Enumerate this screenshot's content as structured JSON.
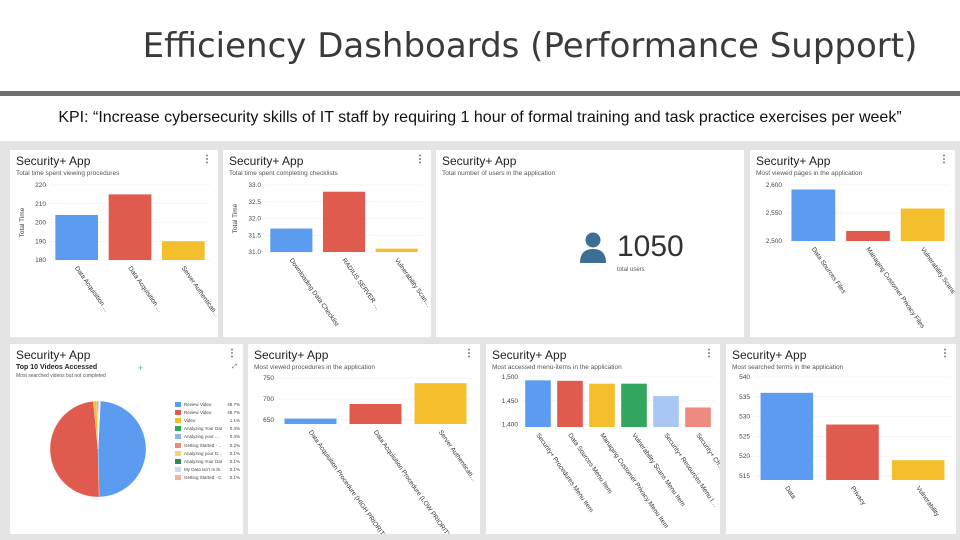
{
  "slide": {
    "title": "Efficiency Dashboards (Performance Support)",
    "kpi": "KPI: “Increase cybersecurity skills of IT staff by requiring 1 hour of formal training and task practice exercises per week”"
  },
  "colors": {
    "blue": "#5b9cf0",
    "red": "#e05a4e",
    "yellow": "#f4bf2c",
    "green": "#33a65d",
    "lightblue": "#a9c7f5",
    "salmon": "#ee8a80"
  },
  "cards": {
    "c1": {
      "title": "Security+ App",
      "subtitle": "Total time spent viewing procedures",
      "menu": "⋮"
    },
    "c2": {
      "title": "Security+ App",
      "subtitle": "Total time spent completing checklists",
      "menu": "⋮"
    },
    "c3": {
      "title": "Security+ App",
      "subtitle": "Total number of users in the application",
      "value": "1050",
      "value_label": "total users",
      "icon": "user-icon"
    },
    "c4": {
      "title": "Security+ App",
      "subtitle": "Most viewed pages in the application",
      "menu": "⋮"
    },
    "c5": {
      "title": "Security+ App",
      "subtitle": "Top 10 Videos Accessed",
      "subtitle2": "Most searched videos but not completed",
      "menu": "⋮",
      "plus": "+",
      "expand": "⤢",
      "legend": [
        {
          "label": "Review Video",
          "pct": "48.7%",
          "color": "#5b9cf0"
        },
        {
          "label": "Review Video",
          "pct": "48.7%",
          "color": "#e05a4e"
        },
        {
          "label": "Video",
          "pct": "1.1%",
          "color": "#f4bf2c"
        },
        {
          "label": "Analyzing Your Dat…",
          "pct": "0.3%",
          "color": "#33a65d"
        },
        {
          "label": "Analyzing your …",
          "pct": "0.3%",
          "color": "#8fb3ef"
        },
        {
          "label": "Getting Started - …",
          "pct": "0.2%",
          "color": "#ee8a80"
        },
        {
          "label": "Analyzing your D…",
          "pct": "0.1%",
          "color": "#f6d36b"
        },
        {
          "label": "Analyzing Your Dat…",
          "pct": "0.1%",
          "color": "#2e8b57"
        },
        {
          "label": "My Data Isn't In th…",
          "pct": "0.1%",
          "color": "#c7d7f7"
        },
        {
          "label": "Getting Started - C…",
          "pct": "0.1%",
          "color": "#f3b0a8"
        }
      ]
    },
    "c6": {
      "title": "Security+ App",
      "subtitle": "Most viewed procedures in the application",
      "menu": "⋮"
    },
    "c7": {
      "title": "Security+ App",
      "subtitle": "Most accessed menu-items in the application",
      "menu": "⋮"
    },
    "c8": {
      "title": "Security+ App",
      "subtitle": "Most searched terms in the application",
      "menu": "⋮"
    }
  },
  "chart_data": [
    {
      "id": "c1",
      "type": "bar",
      "ylabel": "Total Time",
      "ylim": [
        180,
        220
      ],
      "yticks": [
        180,
        190,
        200,
        210,
        220
      ],
      "categories": [
        "Data Acquisition …",
        "Data Acquisition …",
        "Server Authenticati…"
      ],
      "values": [
        204,
        215,
        190
      ],
      "colors": [
        "#5b9cf0",
        "#e05a4e",
        "#f4bf2c"
      ]
    },
    {
      "id": "c2",
      "type": "bar",
      "ylabel": "Total Time",
      "ylim": [
        31.0,
        33.0
      ],
      "yticks": [
        31.0,
        31.5,
        32.0,
        32.5,
        33.0
      ],
      "categories": [
        "Downloading Data Checklist",
        "RADIUS SERVER …",
        "Vulnerability Scan…"
      ],
      "values": [
        31.7,
        32.8,
        31.1
      ],
      "colors": [
        "#5b9cf0",
        "#e05a4e",
        "#f4bf2c"
      ]
    },
    {
      "id": "c4",
      "type": "bar",
      "ylim": [
        2500,
        2600
      ],
      "yticks": [
        2500,
        2550,
        2600
      ],
      "categories": [
        "Data Sources Files",
        "Managing Customer Privacy Files",
        "Vulnerability Scans"
      ],
      "values": [
        2592,
        2518,
        2558
      ],
      "colors": [
        "#5b9cf0",
        "#e05a4e",
        "#f4bf2c"
      ]
    },
    {
      "id": "c5",
      "type": "pie",
      "categories": [
        "Review Video",
        "Review Video",
        "Video",
        "Analyzing Your Dat…",
        "Analyzing your …",
        "Getting Started - …",
        "Analyzing your D…",
        "Analyzing Your Dat…",
        "My Data Isn't In th…",
        "Getting Started - C…"
      ],
      "values": [
        48.7,
        48.7,
        1.1,
        0.3,
        0.3,
        0.2,
        0.1,
        0.1,
        0.1,
        0.1
      ]
    },
    {
      "id": "c6",
      "type": "bar",
      "ylim": [
        640,
        760
      ],
      "yticks": [
        650,
        700,
        750
      ],
      "categories": [
        "Data Acquisition Procedure (HIGH PRIORITY)",
        "Data Acquisition Procedure (LOW PRIORITY)",
        "Server Authenticati…"
      ],
      "values": [
        653,
        688,
        738
      ],
      "colors": [
        "#5b9cf0",
        "#e05a4e",
        "#f4bf2c"
      ]
    },
    {
      "id": "c7",
      "type": "bar",
      "ylim": [
        1395,
        1500
      ],
      "yticks": [
        1400,
        1450,
        1500
      ],
      "categories": [
        "Security+ Procedures Menu Item",
        "Data Sources Menu Item",
        "Managing Customer Privacy Menu Item",
        "Vulnerability Scans Menu Item",
        "Security+ Resources Menu I…",
        "Security+ Ch…"
      ],
      "values": [
        1493,
        1492,
        1486,
        1486,
        1460,
        1436
      ],
      "colors": [
        "#5b9cf0",
        "#e05a4e",
        "#f4bf2c",
        "#33a65d",
        "#a9c7f5",
        "#ee8a80"
      ]
    },
    {
      "id": "c8",
      "type": "bar",
      "ylim": [
        514,
        540
      ],
      "yticks": [
        515,
        520,
        525,
        530,
        535,
        540
      ],
      "categories": [
        "Data",
        "Privacy",
        "Vulnerability"
      ],
      "values": [
        536,
        528,
        519
      ],
      "colors": [
        "#5b9cf0",
        "#e05a4e",
        "#f4bf2c"
      ]
    }
  ]
}
